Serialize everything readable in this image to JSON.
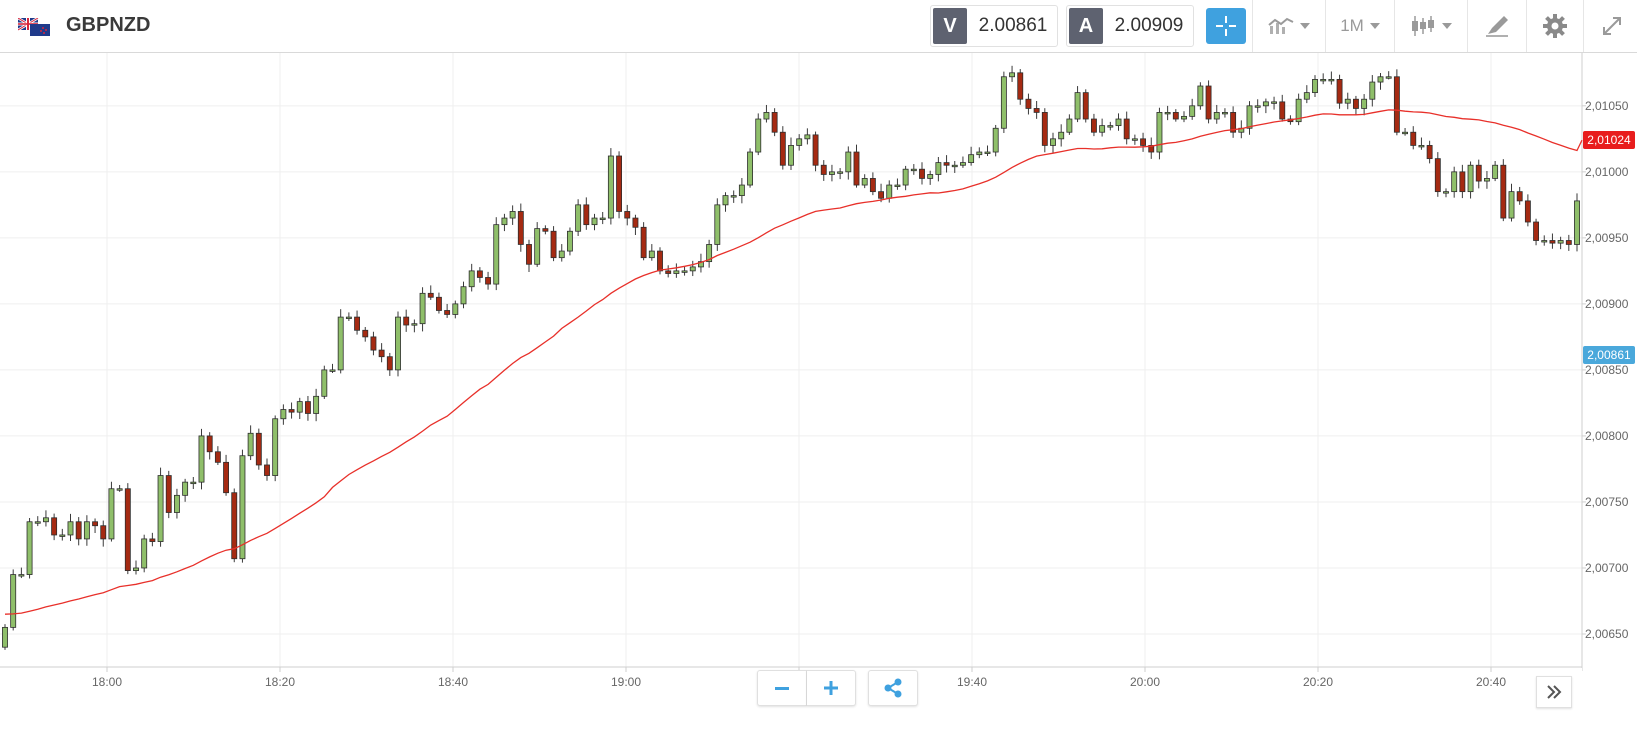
{
  "header": {
    "symbol": "GBPNZD",
    "bid_label": "V",
    "bid_value": "2.00861",
    "ask_label": "A",
    "ask_value": "2.00909",
    "timeframe": "1M"
  },
  "icons": {
    "flag": "gbp-nzd-flag-icon",
    "crosshair": "crosshair-icon",
    "indicators": "indicators-icon",
    "chart_type": "candlestick-icon",
    "drawing": "drawing-tools-icon",
    "settings": "gear-icon",
    "fullscreen": "fullscreen-icon",
    "zoom_out": "minus-icon",
    "zoom_in": "plus-icon",
    "share": "share-icon",
    "scroll_latest": "double-chevron-right-icon"
  },
  "colors": {
    "bull": "#8fbf6a",
    "bear": "#a52a12",
    "ma": "#e8302a",
    "accent": "#3fa1df"
  },
  "chart_data": {
    "type": "candlestick",
    "x_ticks": [
      "18:00",
      "18:20",
      "18:40",
      "19:00",
      "19:20",
      "19:40",
      "20:00",
      "20:20",
      "20:40"
    ],
    "y_ticks": [
      "2,00650",
      "2,00700",
      "2,00750",
      "2,00800",
      "2,00850",
      "2,00900",
      "2,00950",
      "2,01000",
      "2,01050"
    ],
    "ylim": [
      2.00625,
      2.0109
    ],
    "ma_label": "2,01024",
    "bid_label": "2,00861",
    "ma_value": 2.01024,
    "bid_value": 2.00861,
    "closes": [
      2.00655,
      2.00695,
      2.00695,
      2.00735,
      2.00735,
      2.00738,
      2.00725,
      2.00725,
      2.00735,
      2.00722,
      2.00735,
      2.00732,
      2.00722,
      2.0076,
      2.0076,
      2.00698,
      2.007,
      2.00722,
      2.0072,
      2.0077,
      2.00742,
      2.00755,
      2.00765,
      2.00765,
      2.008,
      2.00788,
      2.0078,
      2.00757,
      2.00707,
      2.00785,
      2.00802,
      2.00778,
      2.0077,
      2.00813,
      2.0082,
      2.00818,
      2.00826,
      2.00817,
      2.0083,
      2.0085,
      2.0085,
      2.0089,
      2.0089,
      2.0088,
      2.00875,
      2.00865,
      2.0086,
      2.0085,
      2.0089,
      2.00884,
      2.00885,
      2.00908,
      2.00905,
      2.00895,
      2.00892,
      2.009,
      2.00913,
      2.00925,
      2.0092,
      2.00915,
      2.0096,
      2.00965,
      2.0097,
      2.00945,
      2.0093,
      2.00957,
      2.00955,
      2.00935,
      2.0094,
      2.00955,
      2.00975,
      2.0096,
      2.00965,
      2.00965,
      2.01012,
      2.0097,
      2.00965,
      2.00958,
      2.00935,
      2.0094,
      2.00925,
      2.00923,
      2.00925,
      2.00925,
      2.00928,
      2.00932,
      2.00945,
      2.00975,
      2.00982,
      2.00982,
      2.0099,
      2.01015,
      2.0104,
      2.01045,
      2.0103,
      2.01005,
      2.0102,
      2.01025,
      2.01028,
      2.01005,
      2.00998,
      2.01,
      2.01,
      2.01015,
      2.0099,
      2.00995,
      2.00985,
      2.0098,
      2.0099,
      2.0099,
      2.01002,
      2.01002,
      2.00995,
      2.00998,
      2.01007,
      2.01005,
      2.01005,
      2.01007,
      2.01013,
      2.01015,
      2.01015,
      2.01033,
      2.01072,
      2.01075,
      2.01055,
      2.01048,
      2.01045,
      2.0102,
      2.01025,
      2.0103,
      2.0104,
      2.0106,
      2.0104,
      2.0103,
      2.01035,
      2.01035,
      2.0104,
      2.01025,
      2.01025,
      2.0102,
      2.01015,
      2.01045,
      2.01045,
      2.0104,
      2.01042,
      2.0105,
      2.01065,
      2.0104,
      2.01045,
      2.01045,
      2.0103,
      2.01033,
      2.0105,
      2.0105,
      2.01053,
      2.01053,
      2.0104,
      2.01038,
      2.01055,
      2.0106,
      2.0107,
      2.0107,
      2.0107,
      2.01052,
      2.01055,
      2.01048,
      2.01055,
      2.01068,
      2.01072,
      2.01072,
      2.0103,
      2.0103,
      2.0102,
      2.0102,
      2.0101,
      2.00985,
      2.00985,
      2.01,
      2.00985,
      2.01005,
      2.00993,
      2.00995,
      2.01005,
      2.00965,
      2.00985,
      2.00978,
      2.00962,
      2.00948,
      2.00948,
      2.00946,
      2.00948,
      2.00945,
      2.00978
    ]
  }
}
